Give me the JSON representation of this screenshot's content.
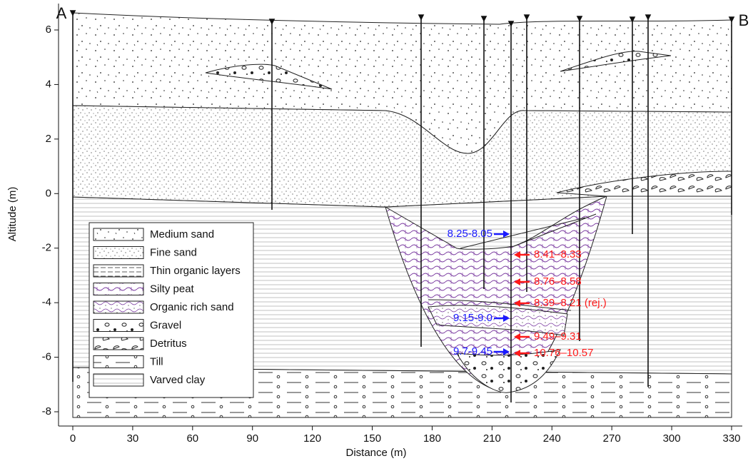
{
  "section": {
    "start_label": "A",
    "end_label": "B"
  },
  "x_axis": {
    "label": "Distance (m)",
    "lim": [
      0,
      330
    ],
    "ticks": [
      0,
      30,
      60,
      90,
      120,
      150,
      180,
      210,
      240,
      270,
      300,
      330
    ]
  },
  "y_axis": {
    "label": "Altitude (m)",
    "lim": [
      -8,
      6
    ],
    "ticks": [
      -8,
      -6,
      -4,
      -2,
      0,
      2,
      4,
      6
    ]
  },
  "legend": [
    "Medium sand",
    "Fine sand",
    "Thin organic layers",
    "Silty peat",
    "Organic rich sand",
    "Gravel",
    "Detritus",
    "Till",
    "Varved clay"
  ],
  "dates": [
    {
      "label": "8.25-8.05",
      "color": "#1a1aff"
    },
    {
      "label": "8.41–8.33",
      "color": "#ff1a1a"
    },
    {
      "label": "8.76–8.58",
      "color": "#ff1a1a"
    },
    {
      "label": "8.39–8.21 (rej.)",
      "color": "#ff1a1a"
    },
    {
      "label": "9.15-9.0",
      "color": "#1a1aff"
    },
    {
      "label": "9.49–9.31",
      "color": "#ff1a1a"
    },
    {
      "label": "9.7-9.45",
      "color": "#1a1aff"
    },
    {
      "label": "10.76–10.57",
      "color": "#ff1a1a"
    }
  ]
}
